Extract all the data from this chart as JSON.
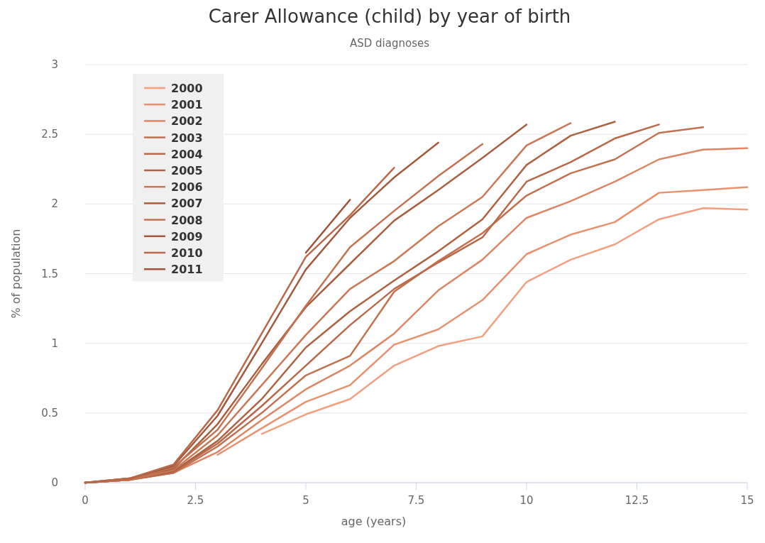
{
  "chart_data": {
    "type": "line",
    "title": "Carer Allowance (child) by year of birth",
    "subtitle": "ASD diagnoses",
    "xlabel": "age (years)",
    "ylabel": "% of population",
    "xlim": [
      0,
      15
    ],
    "xticks": [
      0,
      2.5,
      5,
      7.5,
      10,
      12.5,
      15
    ],
    "ylim": [
      0,
      3
    ],
    "yticks": [
      0,
      0.5,
      1,
      1.5,
      2,
      2.5,
      3
    ],
    "grid": "y",
    "legend": "top left",
    "marker": "none",
    "line_style": "solid",
    "series": [
      {
        "name": "2000",
        "color": "#f4a080",
        "x": [
          4,
          5,
          6,
          7,
          8,
          9,
          10,
          11,
          12,
          13,
          14,
          15
        ],
        "values": [
          0.35,
          0.49,
          0.6,
          0.84,
          0.98,
          1.05,
          1.44,
          1.6,
          1.71,
          1.89,
          1.97,
          1.96
        ]
      },
      {
        "name": "2001",
        "color": "#e8916f",
        "x": [
          3,
          4,
          5,
          6,
          7,
          8,
          9,
          10,
          11,
          12,
          13,
          14,
          15
        ],
        "values": [
          0.2,
          0.39,
          0.58,
          0.7,
          0.99,
          1.1,
          1.31,
          1.64,
          1.78,
          1.87,
          2.08,
          2.1,
          2.12
        ]
      },
      {
        "name": "2002",
        "color": "#dc8664",
        "x": [
          0,
          1,
          2,
          3,
          4,
          5,
          6,
          7,
          8,
          9,
          10,
          11,
          12,
          13,
          14,
          15
        ],
        "values": [
          0,
          0.02,
          0.07,
          0.22,
          0.45,
          0.67,
          0.84,
          1.07,
          1.38,
          1.6,
          1.9,
          2.02,
          2.16,
          2.32,
          2.39,
          2.4
        ]
      },
      {
        "name": "2003",
        "color": "#c2714f",
        "x": [
          0,
          1,
          2,
          3,
          4,
          5,
          6,
          7,
          8,
          9,
          10,
          11,
          12,
          13,
          14
        ],
        "values": [
          0,
          0.02,
          0.07,
          0.26,
          0.5,
          0.77,
          0.91,
          1.37,
          1.59,
          1.79,
          2.06,
          2.22,
          2.32,
          2.51,
          2.55
        ]
      },
      {
        "name": "2004",
        "color": "#b9694a",
        "x": [
          0,
          1,
          2,
          3,
          4,
          5,
          6,
          7,
          8,
          9,
          10,
          11,
          12,
          13
        ],
        "values": [
          0,
          0.02,
          0.08,
          0.28,
          0.55,
          0.84,
          1.13,
          1.39,
          1.58,
          1.76,
          2.16,
          2.3,
          2.47,
          2.57
        ]
      },
      {
        "name": "2005",
        "color": "#ad6242",
        "x": [
          0,
          1,
          2,
          3,
          4,
          5,
          6,
          7,
          8,
          9,
          10,
          11,
          12
        ],
        "values": [
          0,
          0.02,
          0.08,
          0.3,
          0.6,
          0.97,
          1.23,
          1.45,
          1.66,
          1.89,
          2.28,
          2.49,
          2.59
        ]
      },
      {
        "name": "2006",
        "color": "#c97855",
        "x": [
          0,
          1,
          2,
          3,
          4,
          5,
          6,
          7,
          8,
          9,
          10,
          11
        ],
        "values": [
          0,
          0.02,
          0.09,
          0.34,
          0.7,
          1.06,
          1.39,
          1.59,
          1.84,
          2.05,
          2.42,
          2.58
        ]
      },
      {
        "name": "2007",
        "color": "#a95f3e",
        "x": [
          0,
          1,
          2,
          3,
          4,
          5,
          6,
          7,
          8,
          9,
          10
        ],
        "values": [
          0,
          0.03,
          0.1,
          0.42,
          0.85,
          1.26,
          1.57,
          1.88,
          2.1,
          2.33,
          2.57
        ]
      },
      {
        "name": "2008",
        "color": "#c27250",
        "x": [
          0,
          1,
          2,
          3,
          4,
          5,
          6,
          7,
          8,
          9
        ],
        "values": [
          0,
          0.02,
          0.11,
          0.38,
          0.82,
          1.27,
          1.69,
          1.95,
          2.2,
          2.43
        ]
      },
      {
        "name": "2009",
        "color": "#a35a3c",
        "x": [
          0,
          1,
          2,
          3,
          4,
          5,
          6,
          7,
          8
        ],
        "values": [
          0,
          0.03,
          0.12,
          0.48,
          1,
          1.53,
          1.9,
          2.19,
          2.44
        ]
      },
      {
        "name": "2010",
        "color": "#b8694a",
        "x": [
          0,
          1,
          2,
          3,
          4,
          5,
          6,
          7
        ],
        "values": [
          0,
          0.03,
          0.13,
          0.52,
          1.07,
          1.62,
          1.92,
          2.26
        ]
      },
      {
        "name": "2011",
        "color": "#9e5235",
        "x": [
          5,
          6
        ],
        "values": [
          1.65,
          2.03
        ]
      }
    ]
  }
}
